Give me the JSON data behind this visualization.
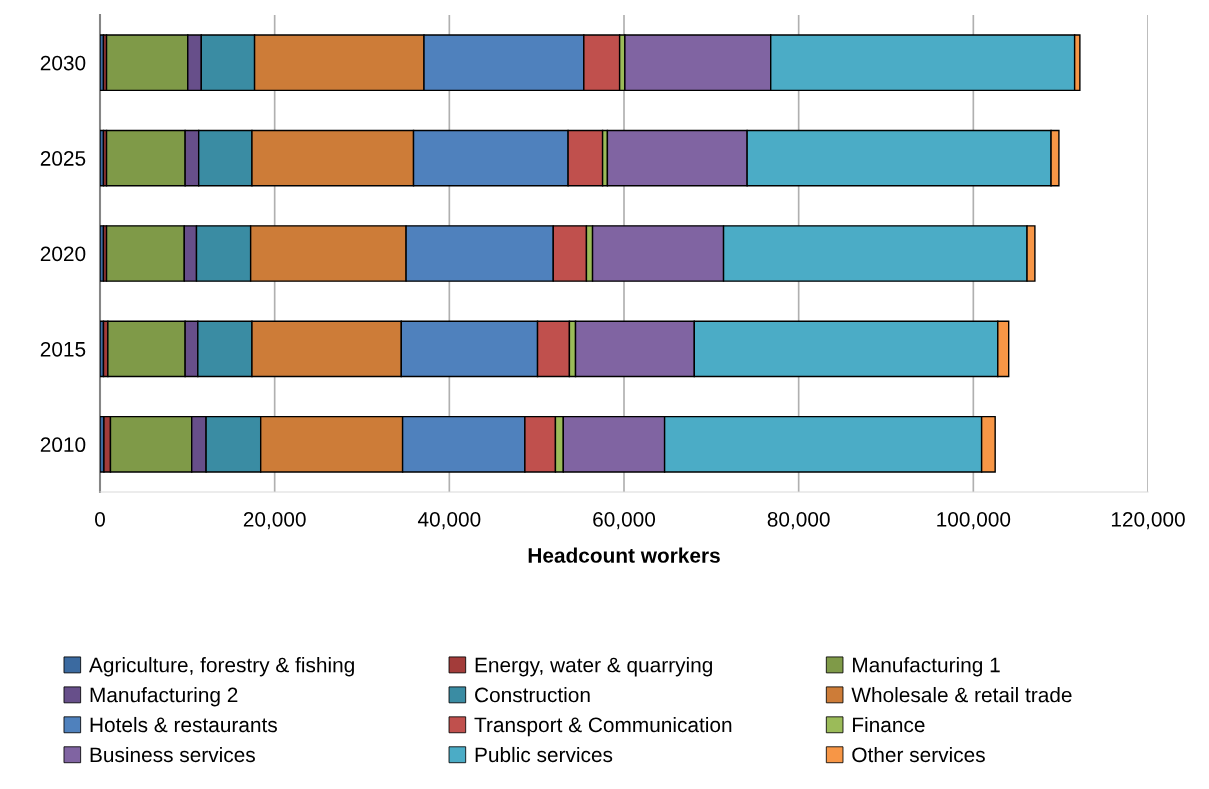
{
  "chart_data": {
    "type": "bar",
    "orientation": "horizontal",
    "stacked": true,
    "xlabel": "Headcount workers",
    "categories": [
      "2030",
      "2025",
      "2020",
      "2015",
      "2010"
    ],
    "series": [
      {
        "name": "Agriculture, forestry & fishing",
        "color": "#3b6aa0",
        "values": [
          400,
          400,
          400,
          400,
          450
        ]
      },
      {
        "name": "Energy, water & quarrying",
        "color": "#a33c3a",
        "values": [
          350,
          350,
          350,
          500,
          750
        ]
      },
      {
        "name": "Manufacturing 1",
        "color": "#7f9a48",
        "values": [
          9300,
          9000,
          8900,
          8850,
          9300
        ]
      },
      {
        "name": "Manufacturing 2",
        "color": "#674f8a",
        "values": [
          1550,
          1550,
          1400,
          1450,
          1650
        ]
      },
      {
        "name": "Construction",
        "color": "#3a8ca3",
        "values": [
          6100,
          6100,
          6200,
          6200,
          6250
        ]
      },
      {
        "name": "Wholesale & retail trade",
        "color": "#cd7c38",
        "values": [
          19400,
          18500,
          17800,
          17100,
          16250
        ]
      },
      {
        "name": "Hotels & restaurants",
        "color": "#4f81bd",
        "values": [
          18300,
          17700,
          16850,
          15600,
          14000
        ]
      },
      {
        "name": "Transport & Communication",
        "color": "#c0504d",
        "values": [
          4100,
          3950,
          3800,
          3650,
          3500
        ]
      },
      {
        "name": "Finance",
        "color": "#9bbb59",
        "values": [
          600,
          550,
          700,
          700,
          900
        ]
      },
      {
        "name": "Business services",
        "color": "#8064a2",
        "values": [
          16700,
          16000,
          15000,
          13600,
          11600
        ]
      },
      {
        "name": "Public services",
        "color": "#4bacc6",
        "values": [
          34800,
          34800,
          34750,
          34750,
          36300
        ]
      },
      {
        "name": "Other services",
        "color": "#f79646",
        "values": [
          600,
          900,
          900,
          1250,
          1550
        ]
      }
    ],
    "xlim": [
      0,
      120000
    ],
    "xticks": [
      0,
      {
        "value": 20000,
        "label": "20,000"
      },
      {
        "value": 40000,
        "label": "40,000"
      },
      {
        "value": 60000,
        "label": "60,000"
      },
      {
        "value": 80000,
        "label": "80,000"
      },
      {
        "value": 100000,
        "label": "100,000"
      },
      {
        "value": 120000,
        "label": "120,000"
      }
    ],
    "grid": "x",
    "legend": "bottom"
  }
}
